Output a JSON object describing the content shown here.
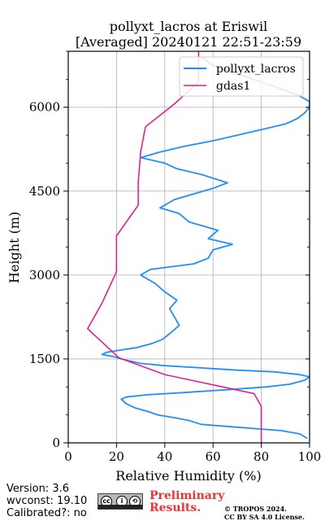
{
  "chart_data": {
    "type": "line",
    "title": "pollyxt_lacros at Eriswil",
    "subtitle": "[Averaged] 20240121 22:51-23:59",
    "xlabel": "Relative Humidity (%)",
    "ylabel": "Height (m)",
    "xlim": [
      0,
      100
    ],
    "ylim": [
      0,
      7000
    ],
    "x_ticks": [
      0,
      20,
      40,
      60,
      80,
      100
    ],
    "y_ticks": [
      0,
      1500,
      3000,
      4500,
      6000
    ],
    "grid": true,
    "legend": "top-right",
    "series": [
      {
        "name": "pollyxt_lacros",
        "color": "#1f8fff",
        "points": [
          [
            99,
            80
          ],
          [
            96,
            160
          ],
          [
            88,
            220
          ],
          [
            70,
            280
          ],
          [
            55,
            330
          ],
          [
            50,
            400
          ],
          [
            44,
            450
          ],
          [
            37,
            500
          ],
          [
            33,
            560
          ],
          [
            28,
            620
          ],
          [
            24,
            700
          ],
          [
            22,
            780
          ],
          [
            24,
            820
          ],
          [
            33,
            860
          ],
          [
            48,
            900
          ],
          [
            66,
            950
          ],
          [
            82,
            1000
          ],
          [
            92,
            1050
          ],
          [
            98,
            1120
          ],
          [
            100,
            1180
          ],
          [
            96,
            1220
          ],
          [
            85,
            1270
          ],
          [
            70,
            1300
          ],
          [
            55,
            1340
          ],
          [
            40,
            1380
          ],
          [
            30,
            1420
          ],
          [
            26,
            1460
          ],
          [
            22,
            1500
          ],
          [
            19,
            1540
          ],
          [
            14,
            1580
          ],
          [
            16,
            1620
          ],
          [
            22,
            1660
          ],
          [
            28,
            1700
          ],
          [
            35,
            1780
          ],
          [
            39,
            1850
          ],
          [
            42,
            1950
          ],
          [
            46,
            2100
          ],
          [
            44,
            2250
          ],
          [
            42,
            2400
          ],
          [
            45,
            2550
          ],
          [
            40,
            2700
          ],
          [
            36,
            2850
          ],
          [
            30,
            3000
          ],
          [
            34,
            3100
          ],
          [
            52,
            3200
          ],
          [
            58,
            3300
          ],
          [
            60,
            3450
          ],
          [
            68,
            3550
          ],
          [
            58,
            3650
          ],
          [
            62,
            3800
          ],
          [
            50,
            3950
          ],
          [
            46,
            4100
          ],
          [
            38,
            4200
          ],
          [
            44,
            4350
          ],
          [
            52,
            4450
          ],
          [
            60,
            4550
          ],
          [
            66,
            4650
          ],
          [
            55,
            4800
          ],
          [
            45,
            4900
          ],
          [
            40,
            5000
          ],
          [
            30,
            5100
          ],
          [
            38,
            5200
          ],
          [
            48,
            5300
          ],
          [
            60,
            5400
          ],
          [
            70,
            5500
          ],
          [
            80,
            5600
          ],
          [
            90,
            5700
          ],
          [
            95,
            5800
          ],
          [
            98,
            5900
          ],
          [
            100,
            6000
          ],
          [
            100,
            6100
          ],
          [
            96,
            6200
          ],
          [
            90,
            6300
          ],
          [
            80,
            6450
          ],
          [
            70,
            6600
          ],
          [
            60,
            6750
          ],
          [
            55,
            6900
          ]
        ]
      },
      {
        "name": "gdas1",
        "color": "#ee1188",
        "points": [
          [
            80,
            0
          ],
          [
            80,
            650
          ],
          [
            77,
            880
          ],
          [
            40,
            1220
          ],
          [
            21,
            1520
          ],
          [
            8,
            2040
          ],
          [
            14,
            2500
          ],
          [
            20,
            3060
          ],
          [
            20,
            3700
          ],
          [
            29,
            4250
          ],
          [
            29,
            4650
          ],
          [
            30,
            5200
          ],
          [
            32,
            5650
          ],
          [
            44,
            6060
          ],
          [
            54,
            6450
          ],
          [
            54,
            7000
          ]
        ]
      }
    ]
  },
  "footer": {
    "version": "Version: 3.6",
    "wvconst": "wvconst:  19.10",
    "calibrated": "Calibrated?: no",
    "preliminary_1": "Preliminary",
    "preliminary_2": "Results.",
    "copyright_1": "© TROPOS 2024.",
    "copyright_2": "CC BY SA 4.0 License.",
    "license_badge": "CC BY SA",
    "preliminary_color": "#ee3333"
  }
}
